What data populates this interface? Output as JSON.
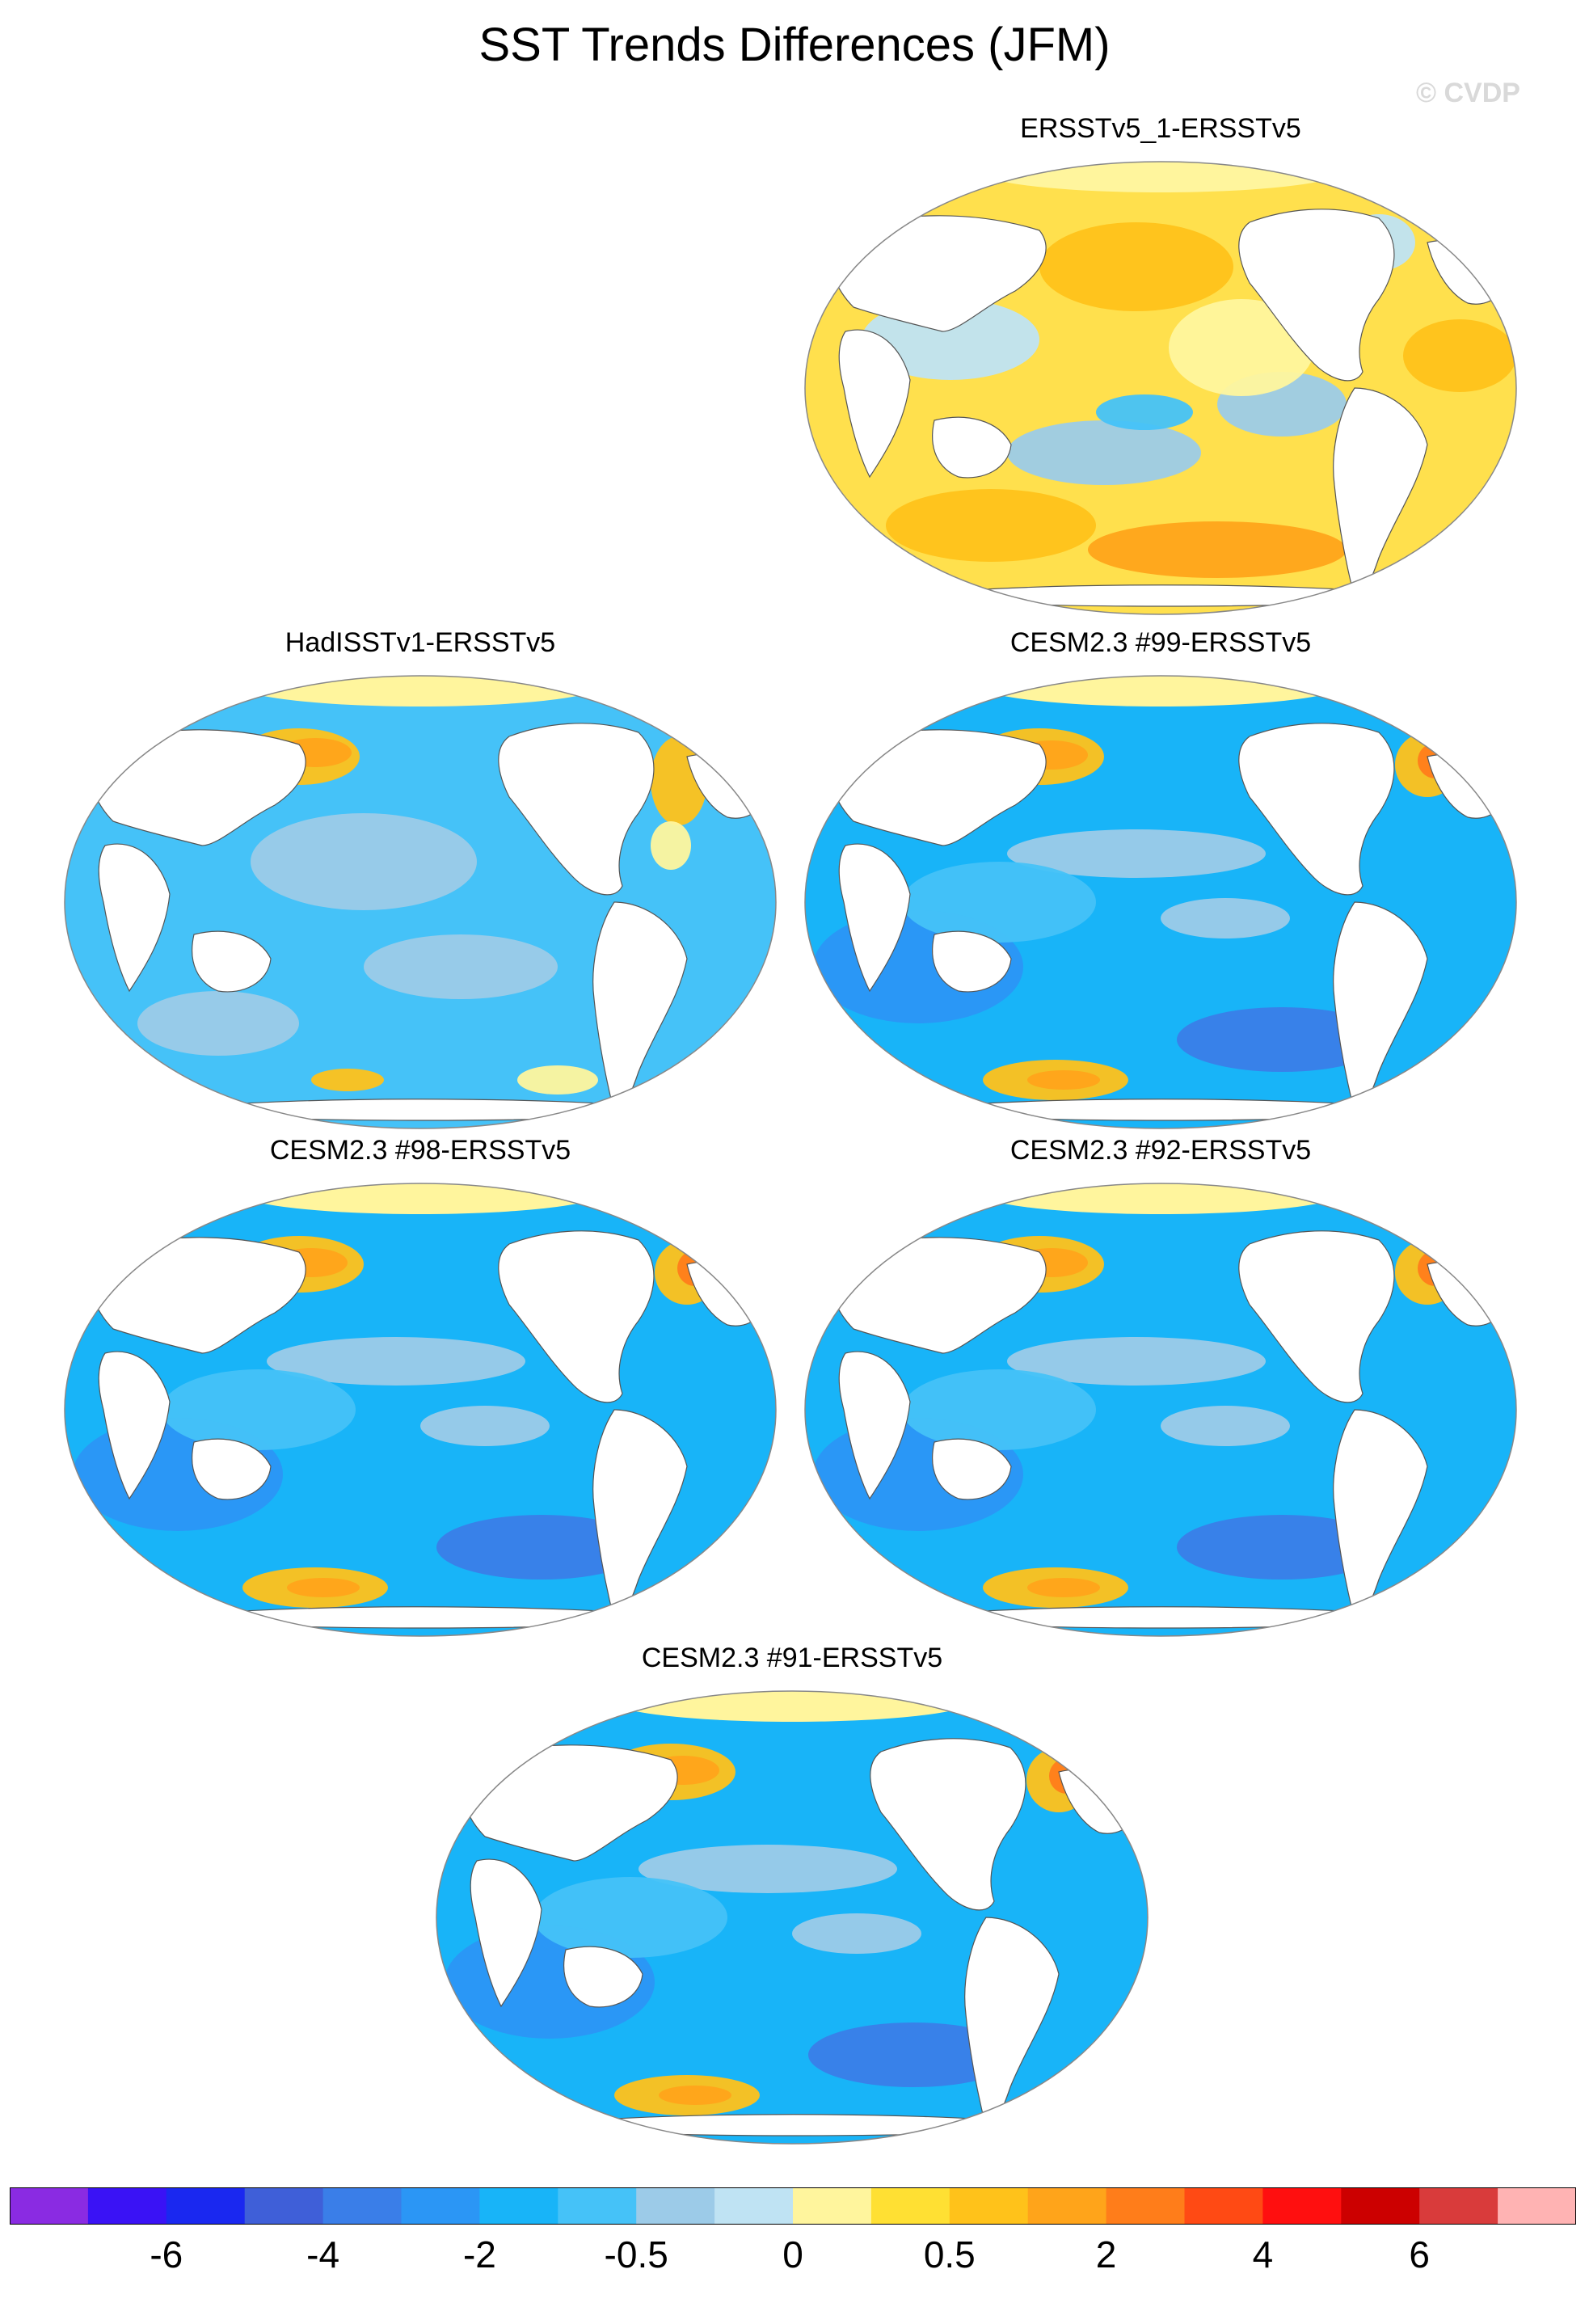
{
  "title": "SST Trends Differences (JFM)",
  "watermark": "© CVDP",
  "panels": [
    {
      "title": "ERSSTv5_1-ERSSTv5",
      "pattern": "warm_mixed"
    },
    {
      "title": "HadISSTv1-ERSSTv5",
      "pattern": "cool_mixed"
    },
    {
      "title": "CESM2.3 #99-ERSSTv5",
      "pattern": "cool"
    },
    {
      "title": "CESM2.3 #98-ERSSTv5",
      "pattern": "cool"
    },
    {
      "title": "CESM2.3 #92-ERSSTv5",
      "pattern": "cool"
    },
    {
      "title": "CESM2.3 #91-ERSSTv5",
      "pattern": "cool"
    }
  ],
  "colorbar": {
    "colors": [
      "#8a2be2",
      "#3a12f5",
      "#1a28f0",
      "#3f5fd8",
      "#3a7ee8",
      "#2b96f5",
      "#18b4f8",
      "#45c2f8",
      "#9ccbe8",
      "#bfe3f3",
      "#fff59d",
      "#ffe033",
      "#ffc21a",
      "#ffa41a",
      "#ff7d1a",
      "#ff4a14",
      "#ff0f0f",
      "#cc0000",
      "#d93b3b",
      "#ffb3b3"
    ],
    "labels": [
      "-6",
      "-4",
      "-2",
      "-0.5",
      "0",
      "0.5",
      "2",
      "4",
      "6"
    ]
  }
}
